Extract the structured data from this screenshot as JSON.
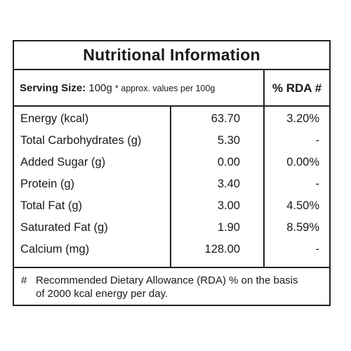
{
  "title": "Nutritional Information",
  "serving": {
    "label": "Serving Size:",
    "value": "100g",
    "note": "* approx. values per 100g"
  },
  "rda_header": "% RDA #",
  "rows": [
    {
      "name": "Energy (kcal)",
      "value": "63.70",
      "rda": "3.20%"
    },
    {
      "name": "Total Carbohydrates (g)",
      "value": "5.30",
      "rda": "-"
    },
    {
      "name": "Added Sugar (g)",
      "value": "0.00",
      "rda": "0.00%"
    },
    {
      "name": "Protein (g)",
      "value": "3.40",
      "rda": "-"
    },
    {
      "name": "Total Fat (g)",
      "value": "3.00",
      "rda": "4.50%"
    },
    {
      "name": "Saturated Fat (g)",
      "value": "1.90",
      "rda": "8.59%"
    },
    {
      "name": "Calcium (mg)",
      "value": "128.00",
      "rda": "-"
    }
  ],
  "footer": {
    "symbol": "#",
    "line1": "Recommended Dietary Allowance (RDA) % on the basis",
    "line2": "of 2000 kcal energy per day."
  }
}
